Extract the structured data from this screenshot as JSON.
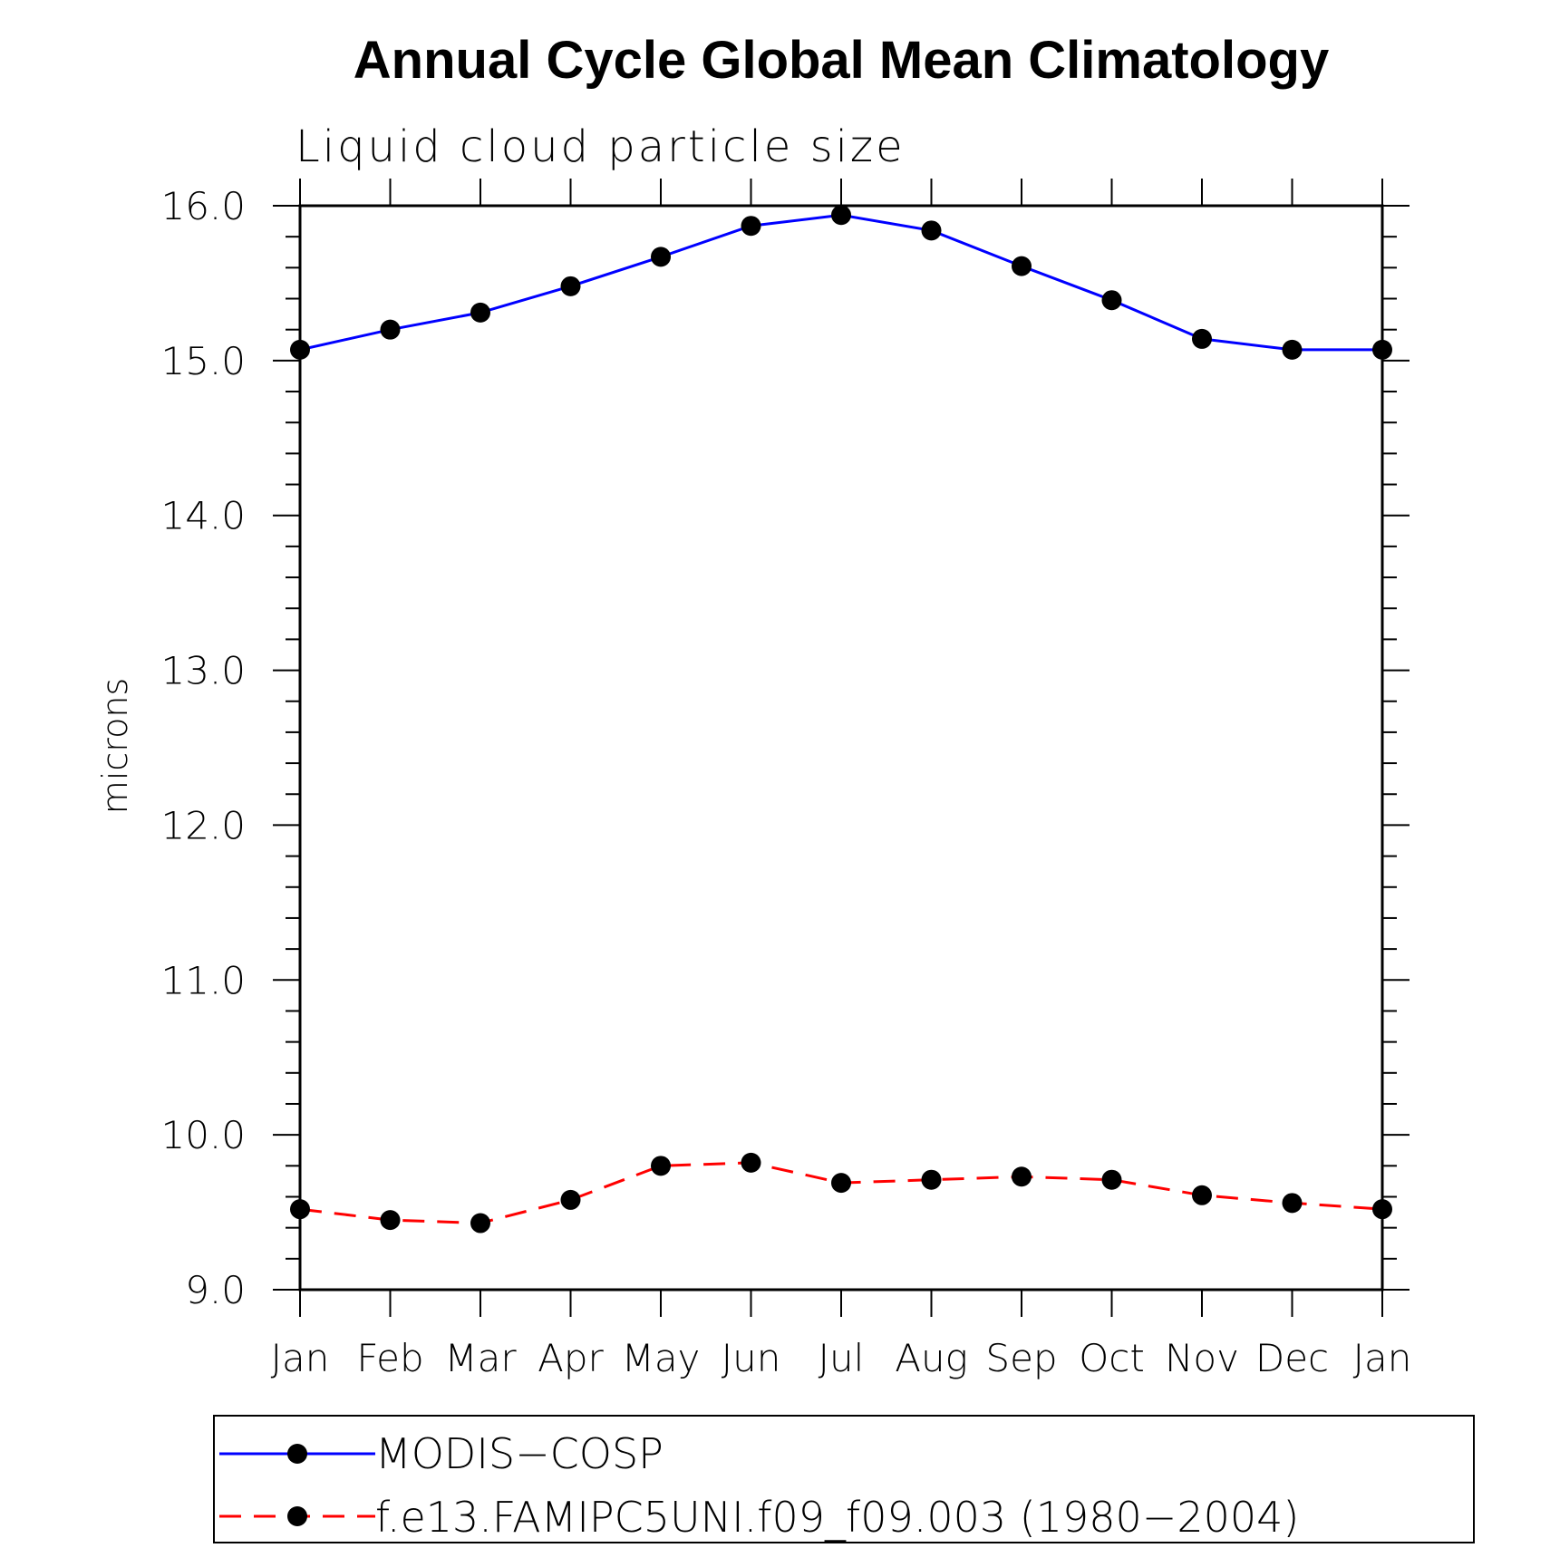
{
  "chart_data": {
    "type": "line",
    "title": "Annual Cycle Global Mean Climatology",
    "subtitle": "Liquid cloud particle size",
    "xlabel": "",
    "ylabel": "microns",
    "categories": [
      "Jan",
      "Feb",
      "Mar",
      "Apr",
      "May",
      "Jun",
      "Jul",
      "Aug",
      "Sep",
      "Oct",
      "Nov",
      "Dec",
      "Jan"
    ],
    "ylim": [
      9.0,
      16.0
    ],
    "yticks": [
      "9.0",
      "10.0",
      "11.0",
      "12.0",
      "13.0",
      "14.0",
      "15.0",
      "16.0"
    ],
    "grid": false,
    "legend_position": "bottom",
    "series": [
      {
        "name": "MODIS−COSP",
        "color": "#0000ff",
        "line_style": "solid",
        "marker": "filled-circle",
        "marker_color": "#000000",
        "values": [
          15.07,
          15.2,
          15.31,
          15.48,
          15.67,
          15.87,
          15.94,
          15.84,
          15.61,
          15.39,
          15.14,
          15.07,
          15.07
        ]
      },
      {
        "name": "f.e13.FAMIPC5UNI.f09_f09.003 (1980−2004)",
        "color": "#ff0000",
        "line_style": "dashed",
        "marker": "filled-circle",
        "marker_color": "#000000",
        "values": [
          9.52,
          9.45,
          9.43,
          9.58,
          9.8,
          9.82,
          9.69,
          9.71,
          9.73,
          9.71,
          9.61,
          9.56,
          9.52
        ]
      }
    ]
  }
}
